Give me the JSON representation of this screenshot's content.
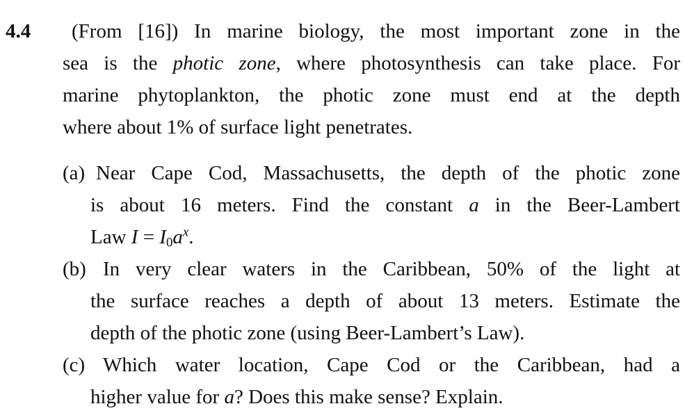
{
  "problem": {
    "number": "4.4",
    "intro_lines": [
      "(From [16]) In marine biology, the most important zone in the",
      [
        "sea is the ",
        "photic zone",
        ", where photosynthesis can take place. For"
      ],
      "marine phytoplankton, the photic zone must end at the depth",
      "where about 1% of surface light penetrates."
    ],
    "parts": [
      {
        "label": "(a)",
        "lines": [
          "Near Cape Cod, Massachusetts, the depth of the photic zone",
          [
            "is about 16 meters. Find the constant ",
            "a",
            " in the Beer-Lambert"
          ],
          [
            "Law ",
            "I",
            " = ",
            "I",
            "0",
            "a",
            "x",
            "."
          ]
        ]
      },
      {
        "label": "(b)",
        "lines": [
          "In very clear waters in the Caribbean, 50% of the light at",
          "the surface reaches a depth of about 13 meters. Estimate the",
          "depth of the photic zone (using Beer-Lambert’s Law)."
        ]
      },
      {
        "label": "(c)",
        "lines": [
          "Which water location, Cape Cod or the Caribbean, had a",
          [
            "higher value for ",
            "a",
            "? Does this make sense? Explain."
          ]
        ]
      }
    ]
  }
}
